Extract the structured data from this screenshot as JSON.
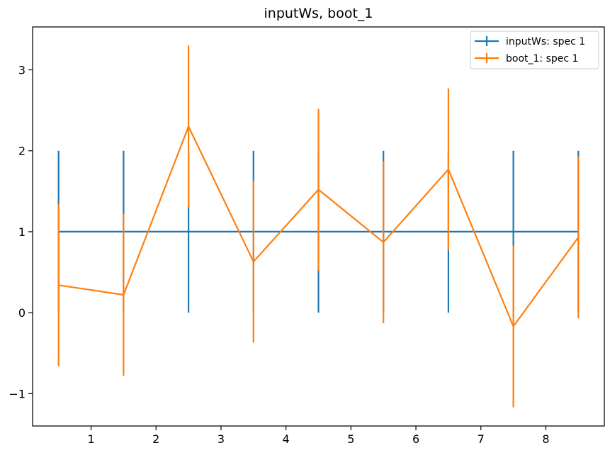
{
  "chart_data": {
    "type": "line",
    "title": "inputWs, boot_1",
    "xlabel": "",
    "ylabel": "",
    "xlim": [
      0.1,
      8.9
    ],
    "ylim": [
      -1.4,
      3.53
    ],
    "xticks": [
      1,
      2,
      3,
      4,
      5,
      6,
      7,
      8
    ],
    "yticks": [
      -1,
      0,
      1,
      2,
      3
    ],
    "legend_position": "top-right",
    "error_bars": true,
    "series": [
      {
        "name": "inputWs: spec 1",
        "color": "#1f77b4",
        "x": [
          0.5,
          1.5,
          2.5,
          3.5,
          4.5,
          5.5,
          6.5,
          7.5,
          8.5
        ],
        "y": [
          1,
          1,
          1,
          1,
          1,
          1,
          1,
          1,
          1
        ],
        "yerr": [
          1,
          1,
          1,
          1,
          1,
          1,
          1,
          1,
          1
        ]
      },
      {
        "name": "boot_1: spec 1",
        "color": "#ff7f0e",
        "x": [
          0.5,
          1.5,
          2.5,
          3.5,
          4.5,
          5.5,
          6.5,
          7.5,
          8.5
        ],
        "y": [
          0.34,
          0.22,
          2.3,
          0.63,
          1.52,
          0.87,
          1.77,
          -0.17,
          0.93
        ],
        "yerr": [
          1,
          1,
          1,
          1,
          1,
          1,
          1,
          1,
          1
        ]
      }
    ]
  }
}
